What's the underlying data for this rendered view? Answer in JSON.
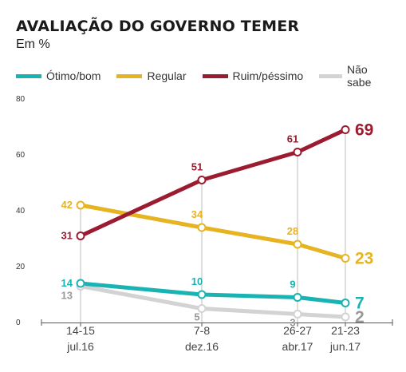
{
  "header": {
    "title": "AVALIAÇÃO DO GOVERNO TEMER",
    "subtitle": "Em %"
  },
  "legend": [
    {
      "label": "Ótimo/bom",
      "color": "#1ab3b3"
    },
    {
      "label": "Regular",
      "color": "#e6b422"
    },
    {
      "label": "Ruim/péssimo",
      "color": "#9b1b30"
    },
    {
      "label": "Não sabe",
      "color": "#d3d3d3"
    }
  ],
  "chart_data": {
    "type": "line",
    "title": "AVALIAÇÃO DO GOVERNO TEMER",
    "subtitle": "Em %",
    "x": [
      {
        "top": "14-15",
        "bottom": "jul.16"
      },
      {
        "top": "7-8",
        "bottom": "dez.16"
      },
      {
        "top": "26-27",
        "bottom": "abr.17"
      },
      {
        "top": "21-23",
        "bottom": "jun.17"
      }
    ],
    "ylim": [
      0,
      80
    ],
    "yticks": [
      0,
      20,
      40,
      60,
      80
    ],
    "grid": "vertical",
    "legend_position": "top",
    "series": [
      {
        "name": "Ótimo/bom",
        "color": "#1ab3b3",
        "values": [
          14,
          10,
          9,
          7
        ]
      },
      {
        "name": "Regular",
        "color": "#e6b422",
        "values": [
          42,
          34,
          28,
          23
        ]
      },
      {
        "name": "Ruim/péssimo",
        "color": "#9b1b30",
        "values": [
          31,
          51,
          61,
          69
        ]
      },
      {
        "name": "Não sabe",
        "color": "#d3d3d3",
        "label_color": "#999999",
        "values": [
          13,
          5,
          3,
          2
        ]
      }
    ]
  }
}
